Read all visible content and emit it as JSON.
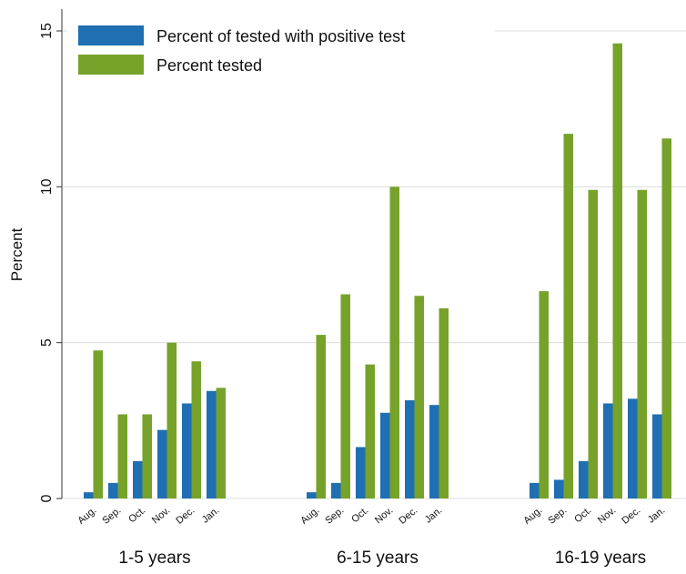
{
  "chart_data": {
    "type": "bar",
    "y_label": "Percent",
    "groups": [
      "1-5 years",
      "6-15 years",
      "16-19 years"
    ],
    "categories": [
      "Aug.",
      "Sep.",
      "Oct.",
      "Nov.",
      "Dec.",
      "Jan.",
      "Aug.",
      "Sep.",
      "Oct.",
      "Nov.",
      "Dec.",
      "Jan.",
      "Aug.",
      "Sep.",
      "Oct.",
      "Nov.",
      "Dec.",
      "Jan."
    ],
    "series": [
      {
        "name": "Percent of tested with positive test",
        "color": "#1f6fb2",
        "values": [
          0.2,
          0.5,
          1.2,
          2.2,
          3.05,
          3.45,
          0.2,
          0.5,
          1.65,
          2.75,
          3.15,
          3.0,
          0.5,
          0.6,
          1.2,
          3.05,
          3.2,
          2.7
        ]
      },
      {
        "name": "Percent tested",
        "color": "#76a22a",
        "values": [
          4.75,
          2.7,
          2.7,
          5.0,
          4.4,
          3.55,
          5.25,
          6.55,
          4.3,
          10.0,
          6.5,
          6.1,
          6.65,
          11.7,
          9.9,
          14.6,
          9.9,
          11.55
        ]
      }
    ],
    "ylim": [
      0,
      15.7
    ],
    "yticks": [
      0,
      5,
      10,
      15
    ],
    "grid": true,
    "legend": "top-left"
  }
}
